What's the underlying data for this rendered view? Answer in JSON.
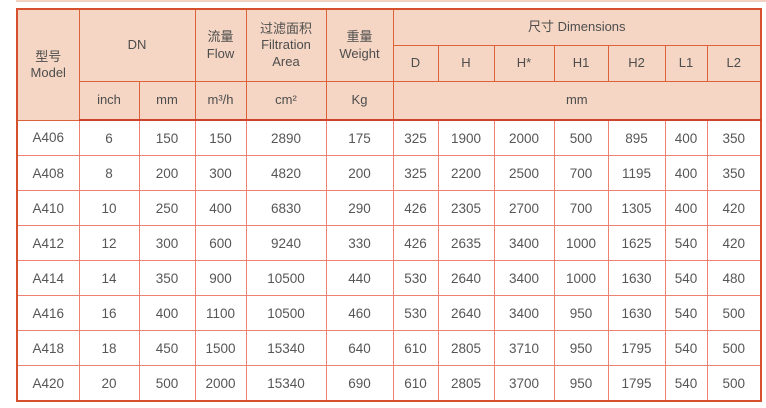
{
  "table": {
    "header": {
      "model": "型号\nModel",
      "dn": "DN",
      "flow": "流量\nFlow",
      "filtration_area": "过滤面积\nFiltration\nArea",
      "weight": "重量\nWeight",
      "dimensions": "尺寸 Dimensions",
      "dim_columns": [
        "D",
        "H",
        "H*",
        "H1",
        "H2",
        "L1",
        "L2"
      ],
      "units": {
        "inch": "inch",
        "mm": "mm",
        "flow": "m³/h",
        "area": "cm²",
        "weight": "Kg",
        "dimensions": "mm"
      }
    },
    "column_keys": [
      "model",
      "dn-inch",
      "dn-mm",
      "flow",
      "filtration-area",
      "weight",
      "d",
      "h",
      "h-star",
      "h1",
      "h2",
      "l1",
      "l2"
    ],
    "rows": [
      [
        "A406",
        "6",
        "150",
        "150",
        "2890",
        "175",
        "325",
        "1900",
        "2000",
        "500",
        "895",
        "400",
        "350"
      ],
      [
        "A408",
        "8",
        "200",
        "300",
        "4820",
        "200",
        "325",
        "2200",
        "2500",
        "700",
        "1195",
        "400",
        "350"
      ],
      [
        "A410",
        "10",
        "250",
        "400",
        "6830",
        "290",
        "426",
        "2305",
        "2700",
        "700",
        "1305",
        "400",
        "420"
      ],
      [
        "A412",
        "12",
        "300",
        "600",
        "9240",
        "330",
        "426",
        "2635",
        "3400",
        "1000",
        "1625",
        "540",
        "420"
      ],
      [
        "A414",
        "14",
        "350",
        "900",
        "10500",
        "440",
        "530",
        "2640",
        "3400",
        "1000",
        "1630",
        "540",
        "480"
      ],
      [
        "A416",
        "16",
        "400",
        "1100",
        "10500",
        "460",
        "530",
        "2640",
        "3400",
        "950",
        "1630",
        "540",
        "500"
      ],
      [
        "A418",
        "18",
        "450",
        "1500",
        "15340",
        "640",
        "610",
        "2805",
        "3710",
        "950",
        "1795",
        "540",
        "500"
      ],
      [
        "A420",
        "20",
        "500",
        "2000",
        "15340",
        "690",
        "610",
        "2805",
        "3700",
        "950",
        "1795",
        "540",
        "500"
      ]
    ]
  },
  "colors": {
    "header_bg": "#f5d6c4",
    "header_border": "#dd6139",
    "body_border": "#ed8274",
    "outer_border": "#d6502e",
    "header_separator": "#cb432a",
    "header_text": "#4d4d4d",
    "body_text": "#565656"
  }
}
